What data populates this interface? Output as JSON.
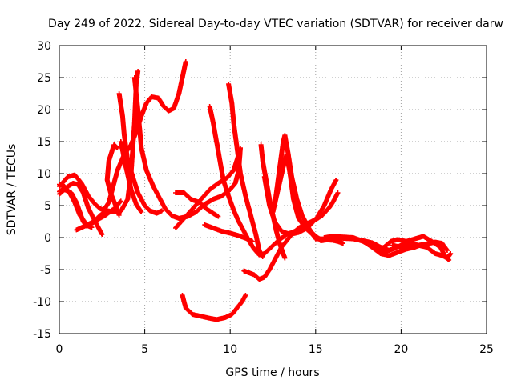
{
  "chart_data": {
    "type": "scatter",
    "title": "Day 249 of 2022, Sidereal Day-to-day VTEC variation (SDTVAR) for receiver darw",
    "xlabel": "GPS time / hours",
    "ylabel": "SDTVAR / TECUs",
    "xlim": [
      0,
      25
    ],
    "ylim": [
      -15,
      30
    ],
    "x_ticks": [
      0,
      5,
      10,
      15,
      20,
      25
    ],
    "y_ticks": [
      -15,
      -10,
      -5,
      0,
      5,
      10,
      15,
      20,
      25,
      30
    ],
    "grid": true,
    "marker": "+",
    "color": "#ff0000",
    "series": [
      {
        "name": "arc-1",
        "points": [
          [
            0,
            8
          ],
          [
            0.5,
            9.5
          ],
          [
            0.9,
            9.8
          ],
          [
            1.3,
            8.5
          ],
          [
            1.7,
            6.5
          ],
          [
            2.1,
            5.2
          ],
          [
            2.4,
            4.5
          ],
          [
            2.6,
            4.3
          ],
          [
            2.9,
            5.5
          ],
          [
            3.1,
            7.5
          ],
          [
            3.4,
            10.5
          ],
          [
            3.8,
            13
          ],
          [
            4.2,
            14.5
          ],
          [
            4.5,
            16.5
          ],
          [
            4.8,
            19
          ],
          [
            5.1,
            21
          ],
          [
            5.4,
            22
          ],
          [
            5.8,
            21.8
          ],
          [
            6.1,
            20.5
          ],
          [
            6.4,
            19.8
          ],
          [
            6.7,
            20.2
          ],
          [
            7,
            22.5
          ],
          [
            7.2,
            25
          ],
          [
            7.4,
            27.5
          ]
        ]
      },
      {
        "name": "arc-2",
        "points": [
          [
            0,
            8.3
          ],
          [
            0.3,
            8
          ],
          [
            0.6,
            7
          ],
          [
            0.9,
            5.5
          ],
          [
            1.2,
            3.5
          ],
          [
            1.5,
            2.4
          ],
          [
            1.7,
            1.8
          ],
          [
            1.9,
            1.6
          ]
        ]
      },
      {
        "name": "arc-3",
        "points": [
          [
            0,
            7.2
          ],
          [
            0.4,
            7.8
          ],
          [
            0.8,
            8.5
          ],
          [
            1.1,
            8.3
          ],
          [
            1.4,
            7
          ],
          [
            1.7,
            4.6
          ],
          [
            2,
            3
          ],
          [
            2.3,
            1.5
          ],
          [
            2.5,
            0.5
          ]
        ]
      },
      {
        "name": "arc-4",
        "points": [
          [
            0,
            6.8
          ],
          [
            0.3,
            7.5
          ],
          [
            0.7,
            7
          ],
          [
            1,
            5.5
          ],
          [
            1.2,
            4
          ],
          [
            1.4,
            2.5
          ],
          [
            1.6,
            1.8
          ],
          [
            1.9,
            2.2
          ],
          [
            2.3,
            2.9
          ],
          [
            2.7,
            3.5
          ],
          [
            3.2,
            4.5
          ],
          [
            3.6,
            5.7
          ]
        ]
      },
      {
        "name": "arc-5",
        "points": [
          [
            1,
            1.2
          ],
          [
            1.5,
            1.8
          ],
          [
            2,
            2.5
          ],
          [
            2.4,
            3.5
          ],
          [
            2.8,
            4.2
          ],
          [
            3.2,
            4
          ],
          [
            3.6,
            4.1
          ],
          [
            4,
            6
          ],
          [
            4.2,
            10
          ],
          [
            4.4,
            18
          ],
          [
            4.5,
            24
          ],
          [
            4.6,
            26
          ]
        ]
      },
      {
        "name": "arc-6",
        "points": [
          [
            3.5,
            3.5
          ],
          [
            3.3,
            5
          ],
          [
            3,
            7
          ],
          [
            2.8,
            9
          ],
          [
            2.9,
            12
          ],
          [
            3.2,
            14.5
          ],
          [
            3.4,
            14
          ]
        ]
      },
      {
        "name": "arc-7",
        "points": [
          [
            3.5,
            22.5
          ],
          [
            3.7,
            19
          ],
          [
            3.8,
            16
          ],
          [
            3.9,
            14
          ],
          [
            4,
            12
          ],
          [
            4.3,
            9.5
          ],
          [
            4.6,
            7
          ],
          [
            5,
            5
          ],
          [
            5.3,
            4.2
          ],
          [
            5.7,
            3.8
          ],
          [
            6,
            4.2
          ]
        ]
      },
      {
        "name": "arc-8",
        "points": [
          [
            3.6,
            15
          ],
          [
            3.9,
            11
          ],
          [
            4.2,
            7.5
          ],
          [
            4.5,
            5.2
          ],
          [
            4.8,
            4
          ]
        ]
      },
      {
        "name": "arc-9",
        "points": [
          [
            4.4,
            25
          ],
          [
            4.6,
            20
          ],
          [
            4.8,
            14
          ],
          [
            5.1,
            10.5
          ],
          [
            5.5,
            8
          ],
          [
            5.9,
            6
          ],
          [
            6.2,
            4.5
          ],
          [
            6.6,
            3.4
          ],
          [
            7,
            3
          ],
          [
            7.5,
            3.3
          ],
          [
            8,
            4
          ],
          [
            8.5,
            5.2
          ],
          [
            9,
            6
          ],
          [
            9.5,
            6.5
          ],
          [
            10,
            7.5
          ],
          [
            10.3,
            8.5
          ],
          [
            10.5,
            10.5
          ],
          [
            10.6,
            14
          ]
        ]
      },
      {
        "name": "arc-10",
        "points": [
          [
            6.8,
            7
          ],
          [
            7.3,
            7
          ],
          [
            7.7,
            6
          ],
          [
            8.2,
            5.5
          ],
          [
            8.6,
            4.5
          ],
          [
            9,
            3.8
          ],
          [
            9.3,
            3.3
          ]
        ]
      },
      {
        "name": "arc-11",
        "points": [
          [
            6.8,
            1.5
          ],
          [
            7.3,
            3
          ],
          [
            7.8,
            4.5
          ],
          [
            8.3,
            6
          ],
          [
            8.8,
            7.5
          ],
          [
            9.3,
            8.5
          ],
          [
            9.8,
            9.3
          ],
          [
            10.2,
            10.5
          ],
          [
            10.5,
            13
          ]
        ]
      },
      {
        "name": "arc-12",
        "points": [
          [
            8.5,
            2
          ],
          [
            9,
            1.5
          ],
          [
            9.5,
            1
          ],
          [
            10,
            0.7
          ],
          [
            10.5,
            0.3
          ],
          [
            11,
            -0.2
          ],
          [
            11.3,
            -0.6
          ]
        ]
      },
      {
        "name": "arc-13",
        "points": [
          [
            8.8,
            20.5
          ],
          [
            9,
            18
          ],
          [
            9.2,
            15
          ],
          [
            9.4,
            12
          ],
          [
            9.6,
            9
          ],
          [
            9.9,
            6.5
          ],
          [
            10.2,
            4.3
          ],
          [
            10.5,
            2.5
          ],
          [
            10.8,
            1
          ],
          [
            11.1,
            -0.5
          ],
          [
            11.4,
            -1.8
          ],
          [
            11.7,
            -2.7
          ],
          [
            12,
            -2.5
          ],
          [
            12.4,
            -1.5
          ],
          [
            12.8,
            -0.5
          ],
          [
            13.3,
            0.5
          ],
          [
            13.8,
            1
          ],
          [
            14.2,
            1.3
          ],
          [
            14.7,
            2
          ],
          [
            15.1,
            3.2
          ],
          [
            15.5,
            5
          ],
          [
            15.9,
            7.5
          ],
          [
            16.2,
            9
          ]
        ]
      },
      {
        "name": "arc-14",
        "points": [
          [
            9.9,
            24
          ],
          [
            10.1,
            21
          ],
          [
            10.2,
            18
          ],
          [
            10.4,
            14
          ],
          [
            10.6,
            10
          ],
          [
            10.9,
            6.5
          ],
          [
            11.2,
            3.5
          ],
          [
            11.5,
            0.5
          ],
          [
            11.7,
            -2
          ],
          [
            11.9,
            -3
          ]
        ]
      },
      {
        "name": "arc-15",
        "points": [
          [
            7.2,
            -9
          ],
          [
            7.4,
            -11
          ],
          [
            7.8,
            -12
          ],
          [
            8.3,
            -12.3
          ],
          [
            8.8,
            -12.6
          ],
          [
            9.2,
            -12.8
          ],
          [
            9.7,
            -12.5
          ],
          [
            10.1,
            -12
          ],
          [
            10.4,
            -11
          ],
          [
            10.7,
            -10
          ],
          [
            10.9,
            -9
          ]
        ]
      },
      {
        "name": "arc-16",
        "points": [
          [
            10.8,
            -5.2
          ],
          [
            11.1,
            -5.5
          ],
          [
            11.4,
            -5.8
          ],
          [
            11.7,
            -6.5
          ],
          [
            12,
            -6.2
          ],
          [
            12.3,
            -5
          ],
          [
            12.6,
            -3.5
          ],
          [
            12.8,
            -2.5
          ],
          [
            13,
            -1.5
          ],
          [
            13.3,
            -0.5
          ],
          [
            13.6,
            0.5
          ],
          [
            14,
            1.5
          ],
          [
            14.5,
            2.2
          ],
          [
            15,
            2.8
          ],
          [
            15.4,
            3.5
          ],
          [
            15.8,
            4.7
          ],
          [
            16,
            5.5
          ],
          [
            16.3,
            7
          ]
        ]
      },
      {
        "name": "arc-17",
        "points": [
          [
            11.8,
            14.5
          ],
          [
            11.9,
            12
          ],
          [
            12.1,
            9
          ],
          [
            12.3,
            6
          ],
          [
            12.5,
            3.5
          ],
          [
            12.7,
            1
          ],
          [
            12.9,
            -1
          ],
          [
            13.1,
            -2.5
          ],
          [
            13.2,
            -3.2
          ]
        ]
      },
      {
        "name": "arc-18",
        "points": [
          [
            12,
            9.5
          ],
          [
            12.3,
            5
          ],
          [
            12.6,
            2.5
          ],
          [
            13,
            1
          ],
          [
            13.5,
            0.5
          ],
          [
            14,
            0.8
          ],
          [
            14.5,
            1.5
          ],
          [
            14.9,
            0.5
          ],
          [
            15.3,
            -0.5
          ],
          [
            15.8,
            -0.3
          ],
          [
            16.3,
            -0.6
          ],
          [
            16.6,
            -0.9
          ]
        ]
      },
      {
        "name": "arc-19",
        "points": [
          [
            12.5,
            4
          ],
          [
            12.8,
            7.5
          ],
          [
            13.1,
            11
          ],
          [
            13.3,
            13
          ],
          [
            13.5,
            10
          ],
          [
            13.7,
            6
          ],
          [
            14,
            3
          ],
          [
            14.4,
            1.5
          ],
          [
            14.8,
            0.5
          ],
          [
            15.3,
            -0.3
          ],
          [
            15.9,
            -0.4
          ],
          [
            16.5,
            -0.1
          ],
          [
            17.2,
            -0.2
          ],
          [
            17.8,
            -0.5
          ],
          [
            18.3,
            -0.8
          ],
          [
            18.8,
            -1.5
          ],
          [
            19.3,
            -2
          ]
        ]
      },
      {
        "name": "arc-20",
        "points": [
          [
            12.6,
            5
          ],
          [
            12.9,
            11
          ],
          [
            13.1,
            15
          ],
          [
            13.2,
            16
          ],
          [
            13.4,
            13
          ],
          [
            13.6,
            9.5
          ],
          [
            13.9,
            6
          ],
          [
            14.2,
            3.5
          ],
          [
            14.6,
            1.5
          ],
          [
            15,
            -0.2
          ],
          [
            15.5,
            -0.2
          ],
          [
            16,
            -0.1
          ],
          [
            16.6,
            0
          ],
          [
            17.2,
            -0.1
          ],
          [
            17.8,
            -0.6
          ],
          [
            18.3,
            -1.5
          ],
          [
            18.8,
            -2.5
          ],
          [
            19.3,
            -2.8
          ],
          [
            19.8,
            -2.3
          ],
          [
            20.3,
            -1.8
          ],
          [
            20.8,
            -1.5
          ],
          [
            21.2,
            -1.1
          ]
        ]
      },
      {
        "name": "arc-21",
        "points": [
          [
            15.5,
            0
          ],
          [
            16,
            0.2
          ],
          [
            16.6,
            0.1
          ],
          [
            17.2,
            0
          ],
          [
            17.7,
            -0.5
          ],
          [
            18.2,
            -1.2
          ],
          [
            18.6,
            -2
          ],
          [
            19,
            -1.5
          ],
          [
            19.4,
            -0.6
          ],
          [
            19.8,
            -0.3
          ],
          [
            20.3,
            -0.6
          ],
          [
            20.8,
            -0.2
          ],
          [
            21.3,
            0.2
          ],
          [
            21.8,
            -0.6
          ],
          [
            22.3,
            -1.5
          ],
          [
            22.6,
            -3
          ],
          [
            22.8,
            -3.5
          ]
        ]
      },
      {
        "name": "arc-22",
        "points": [
          [
            18.5,
            -1
          ],
          [
            19,
            -2.2
          ],
          [
            19.5,
            -1.8
          ],
          [
            20,
            -1.2
          ],
          [
            20.5,
            -0.8
          ],
          [
            21,
            -1.2
          ],
          [
            21.5,
            -1
          ],
          [
            22,
            -0.7
          ],
          [
            22.4,
            -0.9
          ],
          [
            22.7,
            -2
          ]
        ]
      },
      {
        "name": "arc-23",
        "points": [
          [
            19.5,
            -1.2
          ],
          [
            20,
            -1.5
          ],
          [
            20.5,
            -1.3
          ],
          [
            21,
            -1.2
          ],
          [
            21.5,
            -1.5
          ],
          [
            22,
            -2.5
          ],
          [
            22.4,
            -2.8
          ],
          [
            22.7,
            -3.2
          ],
          [
            22.9,
            -2.5
          ]
        ]
      }
    ]
  }
}
